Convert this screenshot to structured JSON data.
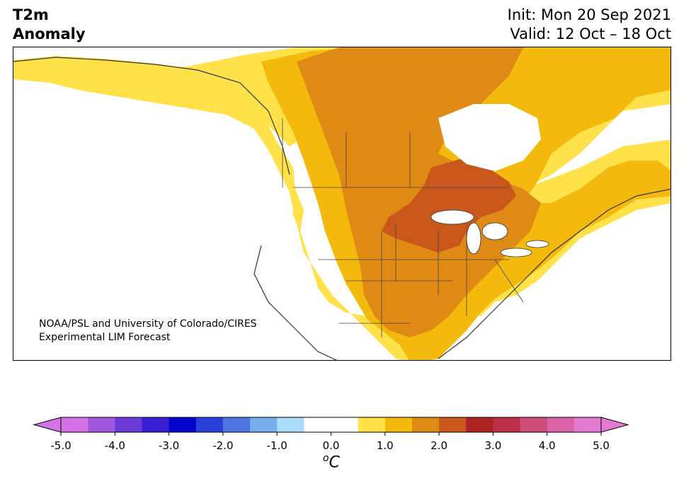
{
  "title": {
    "variable": "T2m",
    "kind": "Anomaly",
    "init": "Init: Mon 20 Sep 2021",
    "valid": "Valid: 12 Oct – 18 Oct"
  },
  "credit": {
    "line1": "NOAA/PSL and University of Colorado/CIRES",
    "line2": "Experimental LIM Forecast"
  },
  "colorbar": {
    "unit_base": "C",
    "unit_superscript": "o",
    "tick_labels": [
      "-5.0",
      "-4.0",
      "-3.0",
      "-2.0",
      "-1.0",
      "0.0",
      "1.0",
      "2.0",
      "3.0",
      "4.0",
      "5.0"
    ],
    "bins": [
      {
        "from": -5.0,
        "to": -4.5,
        "color": "#d572e6"
      },
      {
        "from": -4.5,
        "to": -4.0,
        "color": "#a157e0"
      },
      {
        "from": -4.0,
        "to": -3.5,
        "color": "#6a3bd6"
      },
      {
        "from": -3.5,
        "to": -3.0,
        "color": "#3a1fd2"
      },
      {
        "from": -3.0,
        "to": -2.5,
        "color": "#0303c9"
      },
      {
        "from": -2.5,
        "to": -2.0,
        "color": "#2a3fd8"
      },
      {
        "from": -2.0,
        "to": -1.5,
        "color": "#4f74e0"
      },
      {
        "from": -1.5,
        "to": -1.0,
        "color": "#76aeec"
      },
      {
        "from": -1.0,
        "to": -0.5,
        "color": "#aadcfa"
      },
      {
        "from": -0.5,
        "to": 0.0,
        "color": "#ffffff"
      },
      {
        "from": 0.0,
        "to": 0.5,
        "color": "#ffffff"
      },
      {
        "from": 0.5,
        "to": 1.0,
        "color": "#ffe14a"
      },
      {
        "from": 1.0,
        "to": 1.5,
        "color": "#f3b90c"
      },
      {
        "from": 1.5,
        "to": 2.0,
        "color": "#e08a16"
      },
      {
        "from": 2.0,
        "to": 2.5,
        "color": "#c9571b"
      },
      {
        "from": 2.5,
        "to": 3.0,
        "color": "#ab2323"
      },
      {
        "from": 3.0,
        "to": 3.5,
        "color": "#bb3048"
      },
      {
        "from": 3.5,
        "to": 4.0,
        "color": "#cc4e78"
      },
      {
        "from": 4.0,
        "to": 4.5,
        "color": "#dc63a6"
      },
      {
        "from": 4.5,
        "to": 5.0,
        "color": "#e57ad2"
      }
    ],
    "under_color": "#d572e6",
    "over_color": "#e57ad2"
  }
}
